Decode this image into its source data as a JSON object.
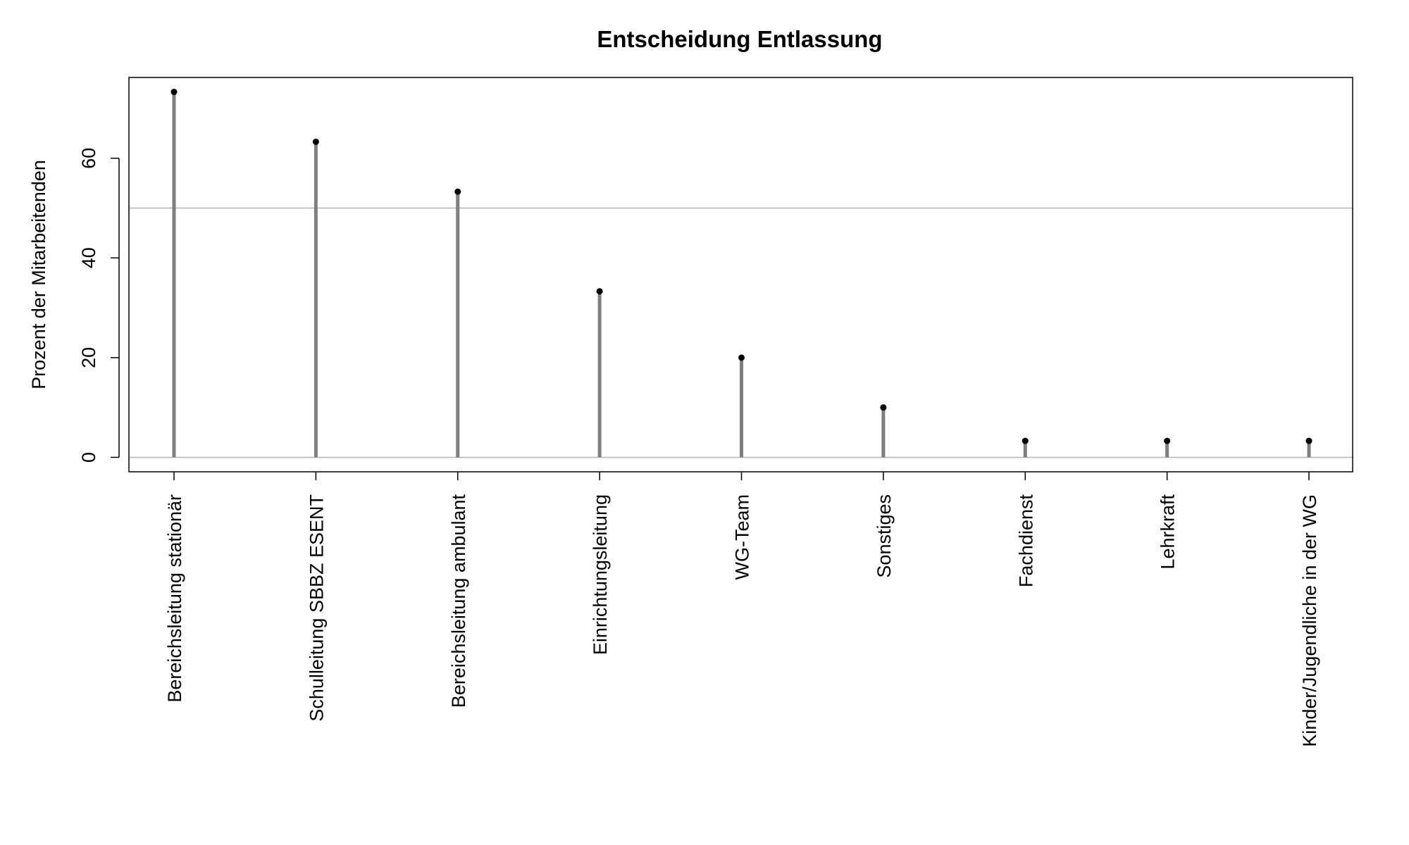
{
  "chart_data": {
    "type": "lollipop",
    "title": "Entscheidung Entlassung",
    "ylabel": "Prozent der Mitarbeitenden",
    "xlabel": "",
    "categories": [
      "Bereichsleitung stationär",
      "Schulleitung SBBZ ESENT",
      "Bereichsleitung ambulant",
      "Einrichtungsleitung",
      "WG-Team",
      "Sonstiges",
      "Fachdienst",
      "Lehrkraft",
      "Kinder/Jugendliche in der WG"
    ],
    "values": [
      73.3,
      63.3,
      53.3,
      33.3,
      20.0,
      10.0,
      3.3,
      3.3,
      3.3
    ],
    "yticks": [
      0,
      20,
      40,
      60
    ],
    "ytick_labels": [
      "0",
      "20",
      "40",
      "60"
    ],
    "ylim": [
      -2.9,
      76.2
    ],
    "reference_lines": [
      0,
      50
    ],
    "grid": false,
    "legend": "none",
    "colors": {
      "stem": "#7f7f7f",
      "point": "#000000",
      "reference_line": "#b3b3b3",
      "frame": "#000000"
    }
  }
}
